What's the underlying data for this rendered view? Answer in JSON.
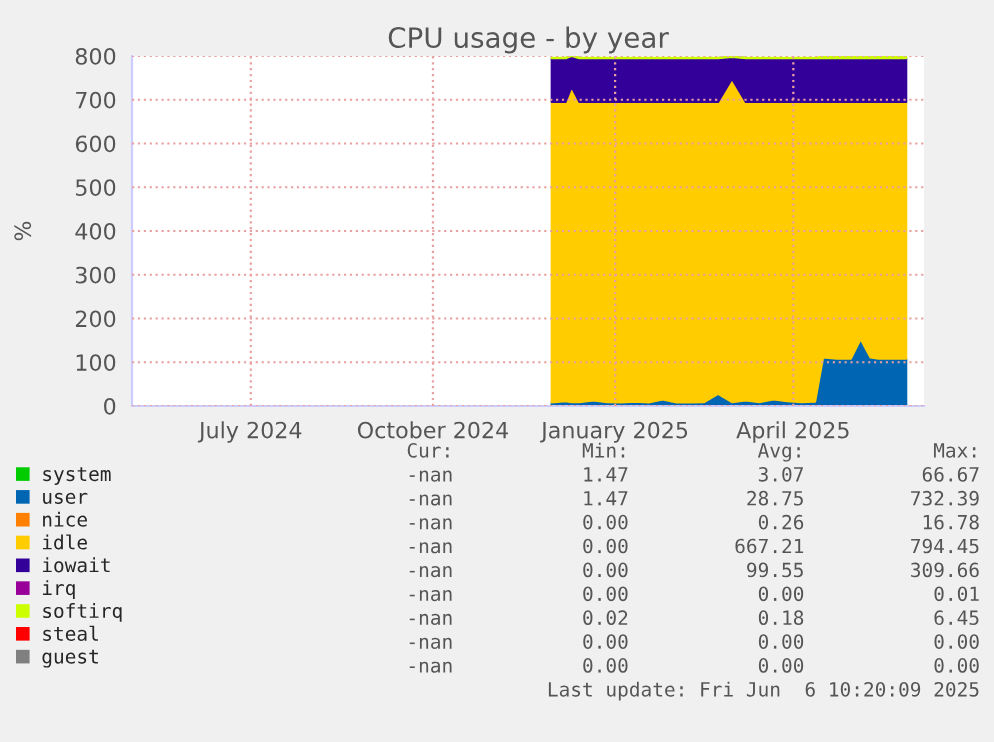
{
  "chart_data": {
    "type": "area",
    "stacked": true,
    "title": "CPU usage - by year",
    "ylabel": "%",
    "x": [
      "2024-11-30",
      "2024-12-07",
      "2024-12-10",
      "2024-12-14",
      "2024-12-21",
      "2024-12-28",
      "2025-01-04",
      "2025-01-11",
      "2025-01-18",
      "2025-01-25",
      "2025-02-01",
      "2025-02-08",
      "2025-02-15",
      "2025-02-22",
      "2025-03-01",
      "2025-03-08",
      "2025-03-15",
      "2025-03-22",
      "2025-03-29",
      "2025-04-05",
      "2025-04-12",
      "2025-04-16",
      "2025-04-23",
      "2025-04-30",
      "2025-05-05",
      "2025-05-10",
      "2025-05-14",
      "2025-05-21",
      "2025-05-28"
    ],
    "series": [
      {
        "name": "system",
        "color": "#00cc00",
        "values": [
          3,
          3,
          3,
          3,
          3,
          3,
          3,
          3,
          3,
          3,
          3,
          3,
          3,
          3,
          3,
          3,
          3,
          3,
          3,
          3,
          3,
          3,
          3,
          3,
          3,
          3,
          3,
          3,
          3
        ]
      },
      {
        "name": "user",
        "color": "#0066b3",
        "values": [
          5,
          8,
          6,
          6,
          10,
          6,
          5,
          7,
          5,
          12,
          5,
          5,
          6,
          25,
          6,
          10,
          6,
          12,
          8,
          6,
          7,
          108,
          105,
          105,
          150,
          108,
          105,
          105,
          105
        ]
      },
      {
        "name": "nice",
        "color": "#ff8000",
        "values": [
          null,
          null,
          null,
          null,
          null,
          null,
          null,
          null,
          null,
          null,
          null,
          null,
          null,
          null,
          null,
          null,
          null,
          null,
          null,
          null,
          null,
          null,
          null,
          null,
          null,
          null,
          null,
          null,
          null
        ]
      },
      {
        "name": "idle",
        "color": "#ffcc00",
        "values": [
          687,
          684,
          721,
          686,
          682,
          686,
          687,
          685,
          687,
          680,
          687,
          687,
          686,
          667,
          739,
          682,
          686,
          680,
          684,
          686,
          685,
          584,
          587,
          587,
          542,
          584,
          587,
          587,
          587
        ]
      },
      {
        "name": "iowait",
        "color": "#330099",
        "values": [
          100,
          100,
          70,
          100,
          100,
          100,
          100,
          100,
          100,
          100,
          100,
          100,
          100,
          100,
          50,
          100,
          100,
          100,
          100,
          100,
          100,
          100,
          100,
          100,
          100,
          100,
          100,
          100,
          100
        ]
      },
      {
        "name": "irq",
        "color": "#990099",
        "values": [
          null,
          null,
          null,
          null,
          null,
          null,
          null,
          null,
          null,
          null,
          null,
          null,
          null,
          null,
          null,
          null,
          null,
          null,
          null,
          null,
          null,
          null,
          null,
          null,
          null,
          null,
          null,
          null,
          null
        ]
      },
      {
        "name": "softirq",
        "color": "#ccff00",
        "values": [
          1,
          1,
          1,
          1,
          1,
          1,
          1,
          1,
          1,
          1,
          1,
          1,
          1,
          1,
          1,
          1,
          1,
          1,
          1,
          1,
          1,
          3,
          3,
          3,
          3,
          3,
          3,
          3,
          3
        ]
      },
      {
        "name": "steal",
        "color": "#ff0000",
        "values": [
          null,
          null,
          null,
          null,
          null,
          null,
          null,
          null,
          null,
          null,
          null,
          null,
          null,
          null,
          null,
          null,
          null,
          null,
          null,
          null,
          null,
          null,
          null,
          null,
          null,
          null,
          null,
          null,
          null
        ]
      },
      {
        "name": "guest",
        "color": "#808080",
        "values": [
          null,
          null,
          null,
          null,
          null,
          null,
          null,
          null,
          null,
          null,
          null,
          null,
          null,
          null,
          null,
          null,
          null,
          null,
          null,
          null,
          null,
          null,
          null,
          null,
          null,
          null,
          null,
          null,
          null
        ]
      }
    ],
    "xlim": [
      "2024-05-02",
      "2025-06-06"
    ],
    "xticks": [
      {
        "value": "2024-07-01",
        "label": "July 2024"
      },
      {
        "value": "2024-10-01",
        "label": "October 2024"
      },
      {
        "value": "2025-01-01",
        "label": "January 2025"
      },
      {
        "value": "2025-04-01",
        "label": "April 2025"
      }
    ],
    "ylim": [
      0,
      800
    ],
    "yticks": [
      0,
      100,
      200,
      300,
      400,
      500,
      600,
      700,
      800
    ],
    "grid": true,
    "legend": "bottom",
    "annotations": [
      "             Cur:           Min:           Avg:           Max:",
      "             -nan           1.47           3.07          66.67",
      "             -nan           1.47          28.75         732.39",
      "             -nan           0.00           0.26          16.78",
      "             -nan           0.00         667.21         794.45",
      "             -nan           0.00          99.55         309.66",
      "             -nan           0.00           0.00           0.01",
      "             -nan           0.02           0.18           6.45",
      "             -nan           0.00           0.00           0.00",
      "             -nan           0.00           0.00           0.00",
      "Last update: Fri Jun  6 10:20:09 2025"
    ]
  }
}
